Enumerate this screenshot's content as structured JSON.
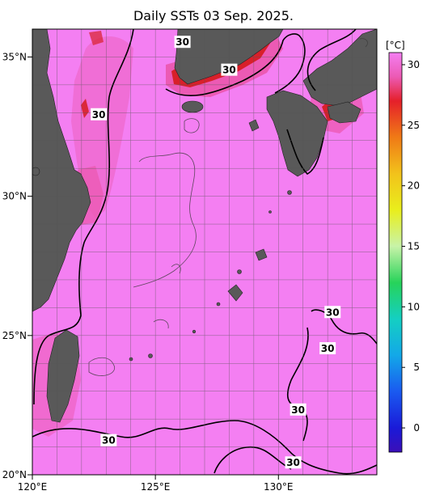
{
  "title": "Daily SSTs 03 Sep. 2025.",
  "map": {
    "lon_range": [
      120,
      134
    ],
    "lat_range": [
      20,
      36
    ],
    "lon_ticks": [
      {
        "value": 120,
        "label": "120°E"
      },
      {
        "value": 125,
        "label": "125°E"
      },
      {
        "value": 130,
        "label": "130°E"
      }
    ],
    "lat_ticks": [
      {
        "value": 20,
        "label": "20°N"
      },
      {
        "value": 25,
        "label": "25°N"
      },
      {
        "value": 30,
        "label": "30°N"
      },
      {
        "value": 35,
        "label": "35°N"
      }
    ],
    "sea_color": "#f47ff2",
    "warm_color": "#ec5ab4",
    "hot_color": "#d8202a",
    "land_color": "#595959"
  },
  "contour_labels": [
    {
      "text": "30",
      "lon": 126.1,
      "lat": 35.5
    },
    {
      "text": "30",
      "lon": 128.0,
      "lat": 34.5
    },
    {
      "text": "30",
      "lon": 122.7,
      "lat": 32.9
    },
    {
      "text": "30",
      "lon": 132.2,
      "lat": 25.8
    },
    {
      "text": "30",
      "lon": 132.0,
      "lat": 24.5
    },
    {
      "text": "30",
      "lon": 130.8,
      "lat": 22.3
    },
    {
      "text": "30",
      "lon": 123.1,
      "lat": 21.2
    },
    {
      "text": "30",
      "lon": 130.6,
      "lat": 20.4
    }
  ],
  "colorbar": {
    "unit": "[°C]",
    "min": -2,
    "max": 31,
    "ticks": [
      0,
      5,
      10,
      15,
      20,
      25,
      30
    ],
    "stops": [
      {
        "value": -2,
        "color": "#3b0fb8"
      },
      {
        "value": 0,
        "color": "#1a1ad8"
      },
      {
        "value": 3,
        "color": "#1a5af0"
      },
      {
        "value": 6,
        "color": "#13a8e8"
      },
      {
        "value": 9,
        "color": "#14cfc2"
      },
      {
        "value": 12,
        "color": "#27d35a"
      },
      {
        "value": 15,
        "color": "#c8f3a8"
      },
      {
        "value": 18,
        "color": "#e9ee1c"
      },
      {
        "value": 21,
        "color": "#f2c21b"
      },
      {
        "value": 24,
        "color": "#f07a16"
      },
      {
        "value": 27,
        "color": "#e5202a"
      },
      {
        "value": 29,
        "color": "#ec5ab4"
      },
      {
        "value": 31,
        "color": "#f47ff2"
      }
    ]
  }
}
